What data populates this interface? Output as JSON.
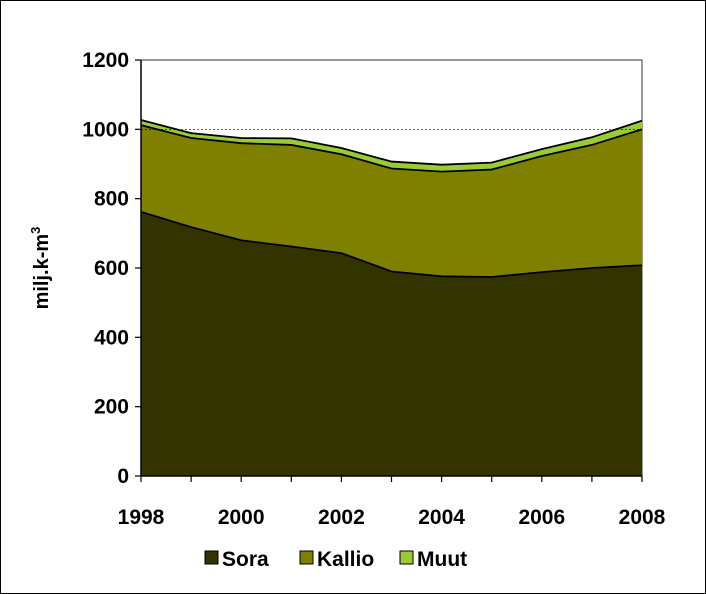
{
  "chart_data": {
    "type": "area",
    "stacked": true,
    "x": [
      1998,
      1999,
      2000,
      2001,
      2002,
      2003,
      2004,
      2005,
      2006,
      2007,
      2008
    ],
    "series": [
      {
        "name": "Sora",
        "color": "#333300",
        "values": [
          762,
          718,
          680,
          662,
          643,
          590,
          576,
          574,
          588,
          600,
          608
        ]
      },
      {
        "name": "Kallio",
        "color": "#808000",
        "values": [
          250,
          257,
          280,
          293,
          285,
          297,
          302,
          310,
          335,
          355,
          392
        ]
      },
      {
        "name": "Muut",
        "color": "#99cc33",
        "values": [
          15,
          14,
          15,
          19,
          18,
          20,
          20,
          20,
          20,
          22,
          25
        ]
      }
    ],
    "xlim": [
      1998,
      2008
    ],
    "ylim": [
      0,
      1200
    ],
    "xticks": [
      "1998",
      "2000",
      "2002",
      "2004",
      "2006",
      "2008"
    ],
    "xtick_values": [
      1998,
      2000,
      2002,
      2004,
      2006,
      2008
    ],
    "yticks": [
      "0",
      "200",
      "400",
      "600",
      "800",
      "1000",
      "1200"
    ],
    "ytick_values": [
      0,
      200,
      400,
      600,
      800,
      1000,
      1200
    ],
    "ylabel": "milj.k-m³",
    "ylabel_main": "milj.k-m",
    "ylabel_sup": "3",
    "reference_line": 1000,
    "legend_position": "bottom"
  }
}
